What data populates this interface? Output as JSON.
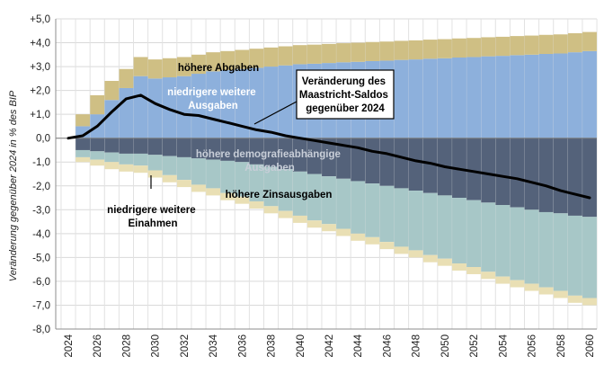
{
  "chart_data": {
    "type": "area",
    "subtype": "stacked-bar-decomposition-with-line",
    "title": "",
    "xlabel": "",
    "ylabel": "Veränderung gegenüber 2024 in % des BIP",
    "x": [
      2024,
      2025,
      2026,
      2027,
      2028,
      2029,
      2030,
      2031,
      2032,
      2033,
      2034,
      2035,
      2036,
      2037,
      2038,
      2039,
      2040,
      2041,
      2042,
      2043,
      2044,
      2045,
      2046,
      2047,
      2048,
      2049,
      2050,
      2051,
      2052,
      2053,
      2054,
      2055,
      2056,
      2057,
      2058,
      2059,
      2060
    ],
    "xticks": [
      "2024",
      "2026",
      "2028",
      "2030",
      "2032",
      "2034",
      "2036",
      "2038",
      "2040",
      "2042",
      "2044",
      "2046",
      "2048",
      "2050",
      "2052",
      "2054",
      "2056",
      "2058",
      "2060"
    ],
    "ylim": [
      -8,
      5
    ],
    "yticks": [
      "+5,0",
      "+4,0",
      "+3,0",
      "+2,0",
      "+1,0",
      "0,0",
      "-1,0",
      "-2,0",
      "-3,0",
      "-4,0",
      "-5,0",
      "-6,0",
      "-7,0",
      "-8,0"
    ],
    "grid": true,
    "series": [
      {
        "name": "niedrigere weitere Ausgaben",
        "color": "#8db0dc",
        "stack": "positive",
        "values": [
          0,
          0.5,
          1.0,
          1.6,
          2.1,
          2.6,
          2.5,
          2.55,
          2.6,
          2.7,
          2.8,
          2.85,
          2.9,
          2.95,
          3.0,
          3.05,
          3.1,
          3.12,
          3.15,
          3.18,
          3.2,
          3.23,
          3.25,
          3.28,
          3.3,
          3.33,
          3.35,
          3.38,
          3.4,
          3.43,
          3.45,
          3.48,
          3.5,
          3.53,
          3.55,
          3.6,
          3.65
        ]
      },
      {
        "name": "höhere Abgaben",
        "color": "#cfbf84",
        "stack": "positive",
        "values": [
          0,
          0.5,
          0.8,
          0.8,
          0.8,
          0.8,
          0.8,
          0.8,
          0.8,
          0.8,
          0.8,
          0.8,
          0.8,
          0.8,
          0.8,
          0.8,
          0.8,
          0.8,
          0.8,
          0.8,
          0.8,
          0.8,
          0.8,
          0.8,
          0.8,
          0.8,
          0.8,
          0.8,
          0.8,
          0.8,
          0.8,
          0.8,
          0.8,
          0.8,
          0.8,
          0.8,
          0.8
        ]
      },
      {
        "name": "höhere demografieabhängige Ausgaben",
        "color": "#54627a",
        "stack": "negative",
        "values": [
          0,
          -0.5,
          -0.55,
          -0.6,
          -0.65,
          -0.65,
          -0.7,
          -0.75,
          -0.8,
          -0.85,
          -0.9,
          -0.95,
          -1.0,
          -1.1,
          -1.2,
          -1.3,
          -1.4,
          -1.5,
          -1.6,
          -1.7,
          -1.8,
          -1.9,
          -2.0,
          -2.1,
          -2.2,
          -2.3,
          -2.4,
          -2.5,
          -2.6,
          -2.7,
          -2.8,
          -2.9,
          -3.0,
          -3.1,
          -3.15,
          -3.25,
          -3.3
        ]
      },
      {
        "name": "höhere Zinsausgaben",
        "color": "#a7c7c7",
        "stack": "negative",
        "values": [
          0,
          -0.3,
          -0.35,
          -0.4,
          -0.45,
          -0.5,
          -0.65,
          -0.8,
          -0.95,
          -1.1,
          -1.2,
          -1.35,
          -1.45,
          -1.55,
          -1.65,
          -1.75,
          -1.85,
          -1.95,
          -2.0,
          -2.1,
          -2.2,
          -2.25,
          -2.35,
          -2.45,
          -2.5,
          -2.6,
          -2.65,
          -2.75,
          -2.8,
          -2.9,
          -3.0,
          -3.05,
          -3.1,
          -3.15,
          -3.25,
          -3.35,
          -3.4
        ]
      },
      {
        "name": "niedrigere weitere Einahmen",
        "color": "#e9dfb4",
        "stack": "negative",
        "values": [
          0,
          -0.2,
          -0.25,
          -0.3,
          -0.3,
          -0.3,
          -0.3,
          -0.3,
          -0.3,
          -0.3,
          -0.3,
          -0.3,
          -0.3,
          -0.3,
          -0.3,
          -0.3,
          -0.3,
          -0.3,
          -0.3,
          -0.3,
          -0.3,
          -0.3,
          -0.3,
          -0.3,
          -0.3,
          -0.3,
          -0.3,
          -0.3,
          -0.3,
          -0.3,
          -0.3,
          -0.3,
          -0.3,
          -0.3,
          -0.3,
          -0.3,
          -0.3
        ]
      },
      {
        "name": "Veränderung des Maastricht-Saldos gegenüber 2024",
        "color": "#000000",
        "type": "line",
        "values": [
          0,
          0.1,
          0.5,
          1.1,
          1.65,
          1.8,
          1.45,
          1.2,
          1.0,
          0.95,
          0.8,
          0.65,
          0.5,
          0.35,
          0.25,
          0.1,
          0.0,
          -0.1,
          -0.2,
          -0.3,
          -0.4,
          -0.55,
          -0.65,
          -0.8,
          -0.95,
          -1.05,
          -1.2,
          -1.3,
          -1.4,
          -1.5,
          -1.6,
          -1.7,
          -1.85,
          -2.0,
          -2.2,
          -2.35,
          -2.5
        ]
      }
    ],
    "annotations": [
      {
        "text": "höhere Abgaben",
        "color": "#000000"
      },
      {
        "text": "niedrigere weitere Ausgaben",
        "color": "#ffffff"
      },
      {
        "text": "Veränderung des Maastricht-Saldos gegenüber 2024",
        "color": "#000000",
        "boxed": true
      },
      {
        "text": "höhere demografieabhängige Ausgaben",
        "color": "#c8ced8"
      },
      {
        "text": "höhere Zinsausgaben",
        "color": "#000000"
      },
      {
        "text": "niedrigere weitere Einahmen",
        "color": "#000000"
      }
    ]
  }
}
